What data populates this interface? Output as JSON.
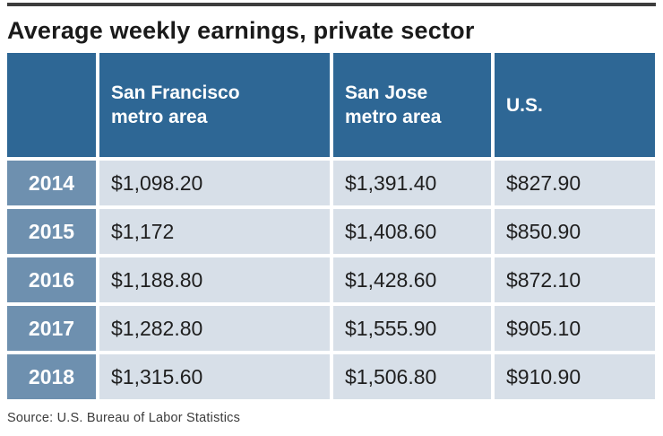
{
  "title": "Average weekly earnings, private sector",
  "source_note": "Source: U.S. Bureau of Labor Statistics",
  "colors": {
    "top_rule": "#3d3d3d",
    "header_bg": "#2e6795",
    "year_column_bg": "#6e90af",
    "value_cell_bg": "#d7dfe8",
    "header_text": "#ffffff",
    "value_text": "#1f1f1f",
    "title_text": "#1a1a1a"
  },
  "chart_data": {
    "type": "table",
    "title": "Average weekly earnings, private sector",
    "columns": [
      "",
      "San Francisco metro area",
      "San Jose metro area",
      "U.S."
    ],
    "rows": [
      {
        "year": "2014",
        "values": [
          "$1,098.20",
          "$1,391.40",
          "$827.90"
        ]
      },
      {
        "year": "2015",
        "values": [
          "$1,172",
          "$1,408.60",
          "$850.90"
        ]
      },
      {
        "year": "2016",
        "values": [
          "$1,188.80",
          "$1,428.60",
          "$872.10"
        ]
      },
      {
        "year": "2017",
        "values": [
          "$1,282.80",
          "$1,555.90",
          "$905.10"
        ]
      },
      {
        "year": "2018",
        "values": [
          "$1,315.60",
          "$1,506.80",
          "$910.90"
        ]
      }
    ],
    "source": "U.S. Bureau of Labor Statistics",
    "legend_position": "none",
    "grid": false
  }
}
